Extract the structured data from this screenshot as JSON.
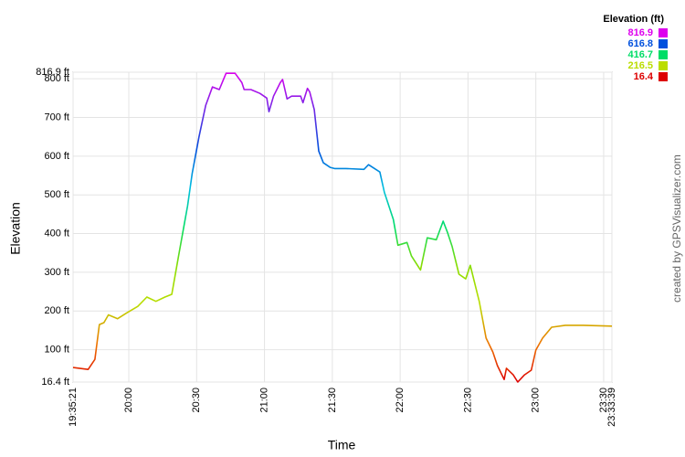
{
  "chart_data": {
    "type": "line",
    "x_label": "Time",
    "y_label": "Elevation",
    "credit": "created by GPSVisualizer.com",
    "legend_title": "Elevation (ft)",
    "color_scale": [
      {
        "value": 816.9,
        "color": "#dd00ee"
      },
      {
        "value": 616.8,
        "color": "#0050dd"
      },
      {
        "value": 416.7,
        "color": "#00dd66"
      },
      {
        "value": 216.5,
        "color": "#bbdd00"
      },
      {
        "value": 16.4,
        "color": "#dd0000"
      }
    ],
    "x": [
      "19:35:21",
      "19:42",
      "19:45",
      "19:47",
      "19:49",
      "19:51",
      "19:55",
      "19:59",
      "20:04",
      "20:08",
      "20:12",
      "20:16",
      "20:19",
      "20:22",
      "20:26",
      "20:28",
      "20:31",
      "20:34",
      "20:37",
      "20:40",
      "20:43",
      "20:47",
      "20:50",
      "20:51",
      "20:54",
      "20:58",
      "21:01",
      "21:02",
      "21:04",
      "21:07",
      "21:08",
      "21:10",
      "21:12",
      "21:16",
      "21:17",
      "21:19",
      "21:20",
      "21:22",
      "21:24",
      "21:26",
      "21:29",
      "21:31",
      "21:36",
      "21:44",
      "21:46",
      "21:51",
      "21:53",
      "21:57",
      "21:59",
      "22:03",
      "22:05",
      "22:09",
      "22:12",
      "22:16",
      "22:19",
      "22:21",
      "22:23",
      "22:26",
      "22:29",
      "22:31",
      "22:35",
      "22:38",
      "22:41",
      "22:43",
      "22:46",
      "22:47",
      "22:50",
      "22:52",
      "22:55",
      "22:58",
      "23:00",
      "23:03",
      "23:07",
      "23:13",
      "23:21",
      "23:33:39"
    ],
    "values": [
      54,
      49,
      75,
      165,
      170,
      190,
      180,
      195,
      212,
      236,
      225,
      236,
      243,
      342,
      472,
      555,
      649,
      731,
      779,
      772,
      814,
      814,
      790,
      772,
      772,
      762,
      750,
      715,
      755,
      790,
      798,
      748,
      755,
      755,
      738,
      775,
      766,
      720,
      613,
      583,
      571,
      568,
      568,
      566,
      578,
      559,
      507,
      436,
      370,
      377,
      342,
      306,
      389,
      384,
      432,
      402,
      366,
      295,
      283,
      318,
      224,
      130,
      94,
      59,
      23,
      52,
      35,
      16.4,
      35,
      47,
      99,
      130,
      158,
      163,
      163,
      161
    ],
    "xlim": [
      "19:35:21",
      "23:33:39"
    ],
    "xticks": [
      "19:35:21",
      "20:00",
      "20:30",
      "21:00",
      "21:30",
      "22:00",
      "22:30",
      "23:00",
      "23:30",
      "23:33:39"
    ],
    "ylim": [
      16.4,
      816.9
    ],
    "yticks": [
      {
        "value": 16.4,
        "label": "16.4 ft"
      },
      {
        "value": 100,
        "label": "100 ft"
      },
      {
        "value": 200,
        "label": "200 ft"
      },
      {
        "value": 300,
        "label": "300 ft"
      },
      {
        "value": 400,
        "label": "400 ft"
      },
      {
        "value": 500,
        "label": "500 ft"
      },
      {
        "value": 600,
        "label": "600 ft"
      },
      {
        "value": 700,
        "label": "700 ft"
      },
      {
        "value": 800,
        "label": "800 ft"
      },
      {
        "value": 816.9,
        "label": "816.9 ft"
      }
    ],
    "grid": true
  }
}
